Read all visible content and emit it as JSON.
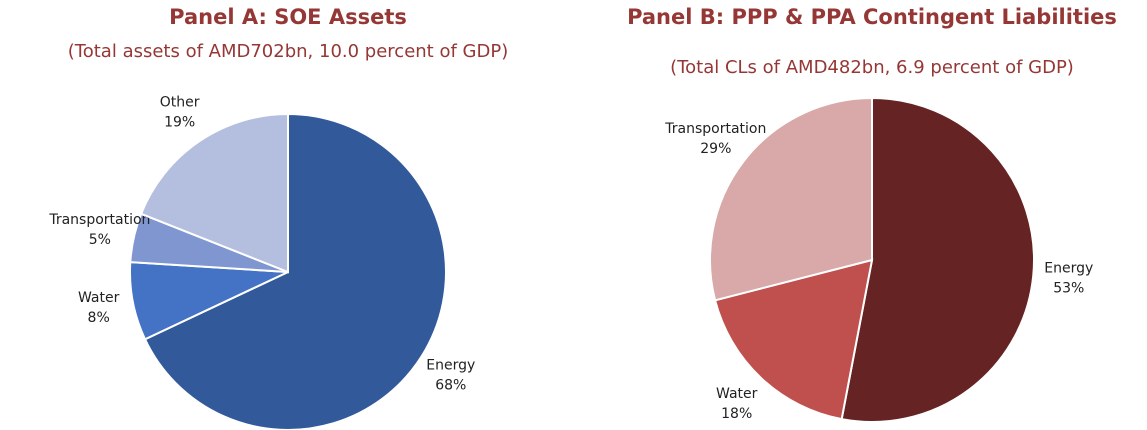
{
  "chart_data": [
    {
      "type": "pie",
      "title": "Panel A: SOE Assets",
      "subtitle": "(Total assets of AMD702bn, 10.0 percent of GDP)",
      "categories": [
        "Energy",
        "Water",
        "Transportation",
        "Other"
      ],
      "values": [
        68,
        8,
        5,
        19
      ],
      "value_labels": [
        "68%",
        "8%",
        "5%",
        "19%"
      ],
      "colors": [
        "#325a9b",
        "#4472c4",
        "#7f96d0",
        "#b4bfe0"
      ]
    },
    {
      "type": "pie",
      "title": "Panel B: PPP & PPA Contingent Liabilities",
      "subtitle": "(Total CLs of AMD482bn, 6.9 percent of GDP)",
      "categories": [
        "Energy",
        "Water",
        "Transportation"
      ],
      "values": [
        53,
        18,
        29
      ],
      "value_labels": [
        "53%",
        "18%",
        "29%"
      ],
      "colors": [
        "#662323",
        "#c0504d",
        "#d9a8a8"
      ]
    }
  ]
}
